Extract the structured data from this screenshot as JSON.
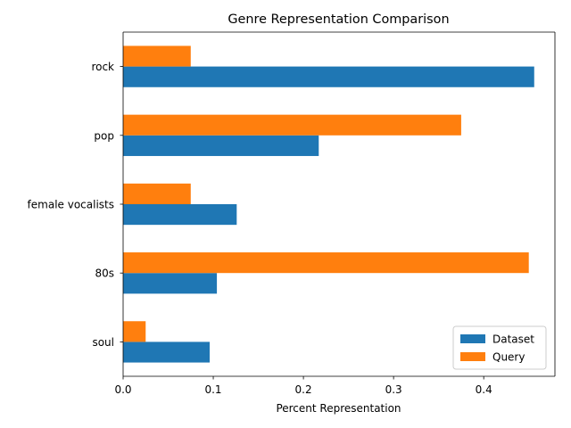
{
  "chart_data": {
    "type": "bar",
    "orientation": "horizontal",
    "title": "Genre Representation Comparison",
    "xlabel": "Percent Representation",
    "ylabel": "",
    "categories": [
      "rock",
      "pop",
      "female vocalists",
      "80s",
      "soul"
    ],
    "series": [
      {
        "name": "Dataset",
        "color": "#1f77b4",
        "values": [
          0.456,
          0.217,
          0.126,
          0.104,
          0.096
        ]
      },
      {
        "name": "Query",
        "color": "#ff7f0e",
        "values": [
          0.075,
          0.375,
          0.075,
          0.45,
          0.025
        ]
      }
    ],
    "xlim": [
      0,
      0.479
    ],
    "xticks": [
      "0.0",
      "0.1",
      "0.2",
      "0.3",
      "0.4"
    ],
    "xtick_values": [
      0,
      0.1,
      0.2,
      0.3,
      0.4
    ],
    "grid": false,
    "legend_position": "lower-right"
  }
}
